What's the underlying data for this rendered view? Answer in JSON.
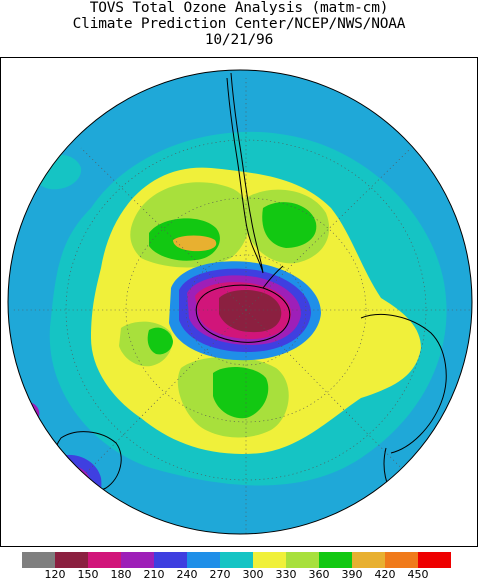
{
  "header": {
    "title_line1": "TOVS Total Ozone Analysis (matm-cm)",
    "title_line2": "Climate Prediction Center/NCEP/NWS/NOAA",
    "date": "10/21/96"
  },
  "map": {
    "projection": "south-polar-stereographic",
    "features": [
      "ozone-hole",
      "antarctica-outline",
      "south-america-outline",
      "australia-outline",
      "africa-outline",
      "new-zealand-outline"
    ]
  },
  "legend": {
    "swatches": [
      {
        "color": "#7f7f7f"
      },
      {
        "color": "#8b2040"
      },
      {
        "color": "#d1157a"
      },
      {
        "color": "#9e1fb8"
      },
      {
        "color": "#3f3fe0"
      },
      {
        "color": "#1f8fe8"
      },
      {
        "color": "#15c4c4"
      },
      {
        "color": "#f0f03a"
      },
      {
        "color": "#a8e03c"
      },
      {
        "color": "#12c812"
      },
      {
        "color": "#e8b030"
      },
      {
        "color": "#f07a1a"
      },
      {
        "color": "#ee0000"
      }
    ],
    "labels": [
      "120",
      "150",
      "180",
      "210",
      "240",
      "270",
      "300",
      "330",
      "360",
      "390",
      "420",
      "450"
    ]
  },
  "colors": {
    "ocean_base": "#1fa8d8",
    "mid_band": "#15c4c4",
    "yellow": "#f0f03a",
    "lightgreen": "#a8e03c",
    "green": "#12c812",
    "orange": "#e8b030",
    "blue": "#3f3fe0",
    "purple": "#9e1fb8",
    "magenta": "#d1157a",
    "maroon": "#8b2040"
  }
}
